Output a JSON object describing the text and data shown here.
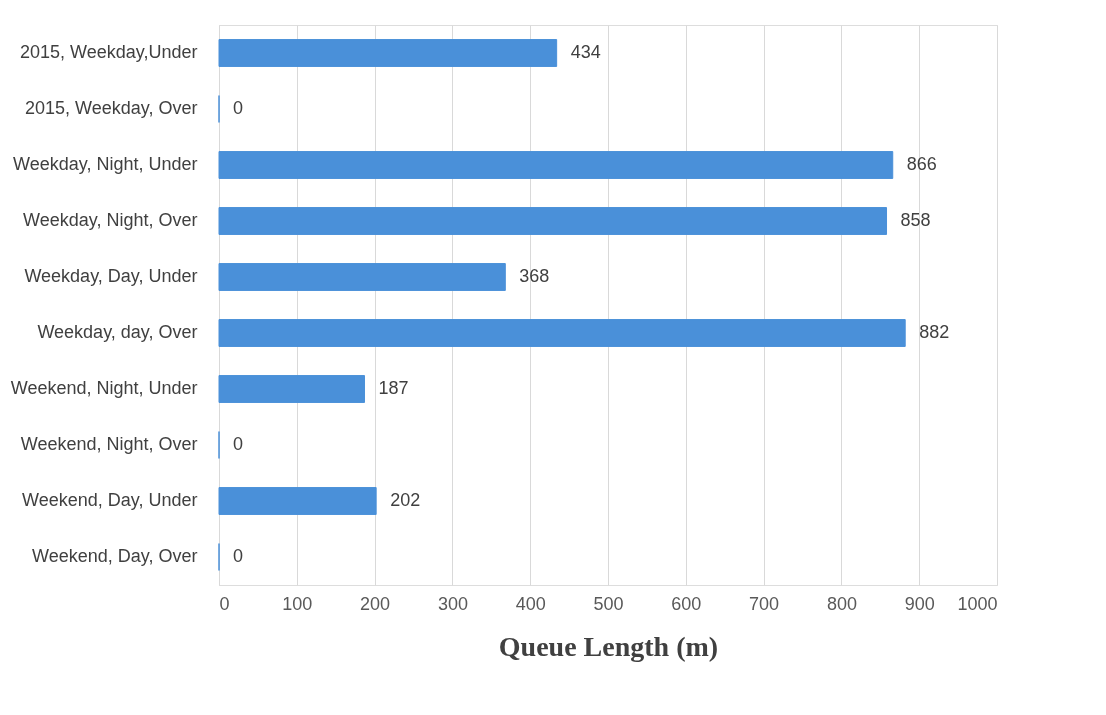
{
  "chart_data": {
    "type": "bar",
    "orientation": "horizontal",
    "xlabel": "Queue Length (m)",
    "categories": [
      "2015, Weekday,Under",
      "2015, Weekday, Over",
      "Weekday, Night, Under",
      "Weekday, Night, Over",
      "Weekday, Day, Under",
      "Weekday, day, Over",
      "Weekend, Night, Under",
      "Weekend, Night, Over",
      "Weekend, Day, Under",
      "Weekend, Day, Over"
    ],
    "values": [
      434,
      0,
      866,
      858,
      368,
      882,
      187,
      0,
      202,
      0
    ],
    "color": "#4a90d9",
    "xlim": [
      0,
      1000
    ],
    "xticks": [
      0,
      100,
      200,
      300,
      400,
      500,
      600,
      700,
      800,
      900,
      1000
    ],
    "grid": "x",
    "data_labels": true
  }
}
